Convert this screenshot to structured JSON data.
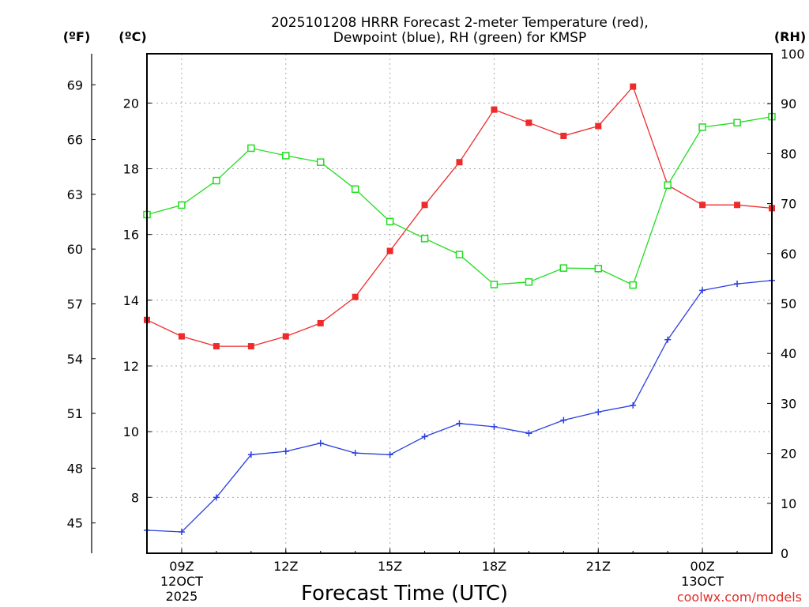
{
  "chart_data": {
    "type": "line",
    "title_line1": "2025101208 HRRR Forecast 2-meter Temperature (red),",
    "title_line2": "Dewpoint (blue), RH (green) for KMSP",
    "xlabel": "Forecast Time (UTC)",
    "credit": "coolwx.com/models",
    "unit_f": "(ºF)",
    "unit_c": "(ºC)",
    "unit_rh": "(RH)",
    "x_hours": [
      8,
      9,
      10,
      11,
      12,
      13,
      14,
      15,
      16,
      17,
      18,
      19,
      20,
      21,
      22,
      23,
      24,
      25,
      26
    ],
    "x_range": [
      8,
      26
    ],
    "x_ticks": [
      {
        "hour": 9,
        "label": "09Z",
        "sub1": "12OCT",
        "sub2": "2025"
      },
      {
        "hour": 12,
        "label": "12Z",
        "sub1": "",
        "sub2": ""
      },
      {
        "hour": 15,
        "label": "15Z",
        "sub1": "",
        "sub2": ""
      },
      {
        "hour": 18,
        "label": "18Z",
        "sub1": "",
        "sub2": ""
      },
      {
        "hour": 21,
        "label": "21Z",
        "sub1": "",
        "sub2": ""
      },
      {
        "hour": 24,
        "label": "00Z",
        "sub1": "13OCT",
        "sub2": ""
      }
    ],
    "celsius_range": [
      6.3,
      21.5
    ],
    "celsius_ticks": [
      "8",
      "10",
      "12",
      "14",
      "16",
      "18",
      "20"
    ],
    "fahrenheit_ticks": [
      "45",
      "48",
      "51",
      "54",
      "57",
      "60",
      "63",
      "66",
      "69"
    ],
    "rh_range": [
      0,
      100
    ],
    "rh_ticks": [
      "0",
      "10",
      "20",
      "30",
      "40",
      "50",
      "60",
      "70",
      "80",
      "90",
      "100"
    ],
    "series": [
      {
        "name": "Temperature",
        "unit": "C",
        "color": "#ee2b2b",
        "marker": "filled-square",
        "values": [
          13.4,
          12.9,
          12.6,
          12.6,
          12.9,
          13.3,
          14.1,
          15.5,
          16.9,
          18.2,
          19.8,
          19.4,
          19.0,
          19.3,
          20.5,
          17.5,
          16.9,
          16.9,
          16.8
        ]
      },
      {
        "name": "Dewpoint",
        "unit": "C",
        "color": "#2a3fe0",
        "marker": "plus",
        "values": [
          7.0,
          6.95,
          8.0,
          9.3,
          9.4,
          9.65,
          9.35,
          9.3,
          9.85,
          10.25,
          10.15,
          9.95,
          10.35,
          10.6,
          10.8,
          12.8,
          14.3,
          14.5,
          14.6
        ]
      },
      {
        "name": "RH",
        "unit": "%",
        "color": "#22dd22",
        "marker": "open-square",
        "values": [
          67.8,
          69.7,
          74.6,
          81.1,
          79.6,
          78.3,
          72.9,
          66.4,
          63.0,
          59.8,
          53.8,
          54.3,
          57.1,
          57.0,
          53.7,
          73.7,
          85.3,
          86.2,
          87.4
        ]
      }
    ]
  }
}
